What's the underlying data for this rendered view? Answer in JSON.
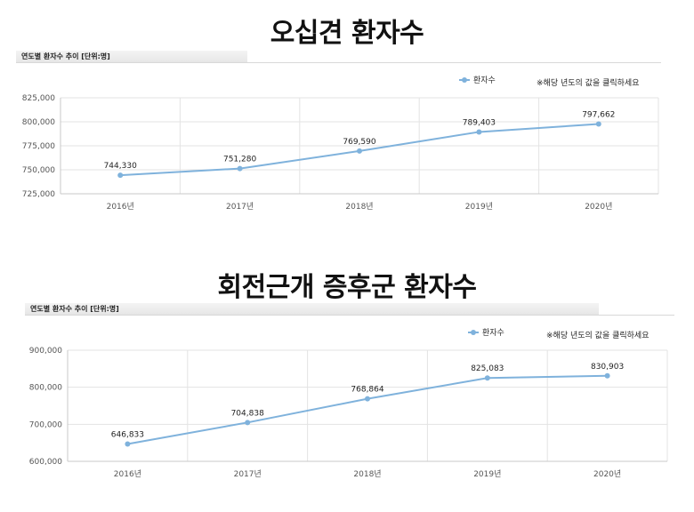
{
  "chart_data": [
    {
      "type": "line",
      "title": "오십견 환자수",
      "subtitle": "연도별 환자수 추이 [단위:명]",
      "note": "※해당 년도의 값을 클릭하세요",
      "legend_placement": "top-right",
      "categories": [
        "2016년",
        "2017년",
        "2018년",
        "2019년",
        "2020년"
      ],
      "series": [
        {
          "name": "환자수",
          "values": [
            744330,
            751280,
            769590,
            789403,
            797662
          ],
          "labels": [
            "744,330",
            "751,280",
            "769,590",
            "789,403",
            "797,662"
          ]
        }
      ],
      "ylim": [
        725000,
        825000
      ],
      "yticks": [
        725000,
        750000,
        775000,
        800000,
        825000
      ],
      "ytick_labels": [
        "725,000",
        "750,000",
        "775,000",
        "800,000",
        "825,000"
      ],
      "grid": true,
      "color": "#7fb2dc"
    },
    {
      "type": "line",
      "title": "회전근개 증후군 환자수",
      "subtitle": "연도별 환자수 추이 [단위:명]",
      "note": "※해당 년도의 값을 클릭하세요",
      "legend_placement": "top-right",
      "categories": [
        "2016년",
        "2017년",
        "2018년",
        "2019년",
        "2020년"
      ],
      "series": [
        {
          "name": "환자수",
          "values": [
            646833,
            704838,
            768864,
            825083,
            830903
          ],
          "labels": [
            "646,833",
            "704,838",
            "768,864",
            "825,083",
            "830,903"
          ]
        }
      ],
      "ylim": [
        600000,
        900000
      ],
      "yticks": [
        600000,
        700000,
        800000,
        900000
      ],
      "ytick_labels": [
        "600,000",
        "700,000",
        "800,000",
        "900,000"
      ],
      "grid": true,
      "color": "#7fb2dc"
    }
  ]
}
